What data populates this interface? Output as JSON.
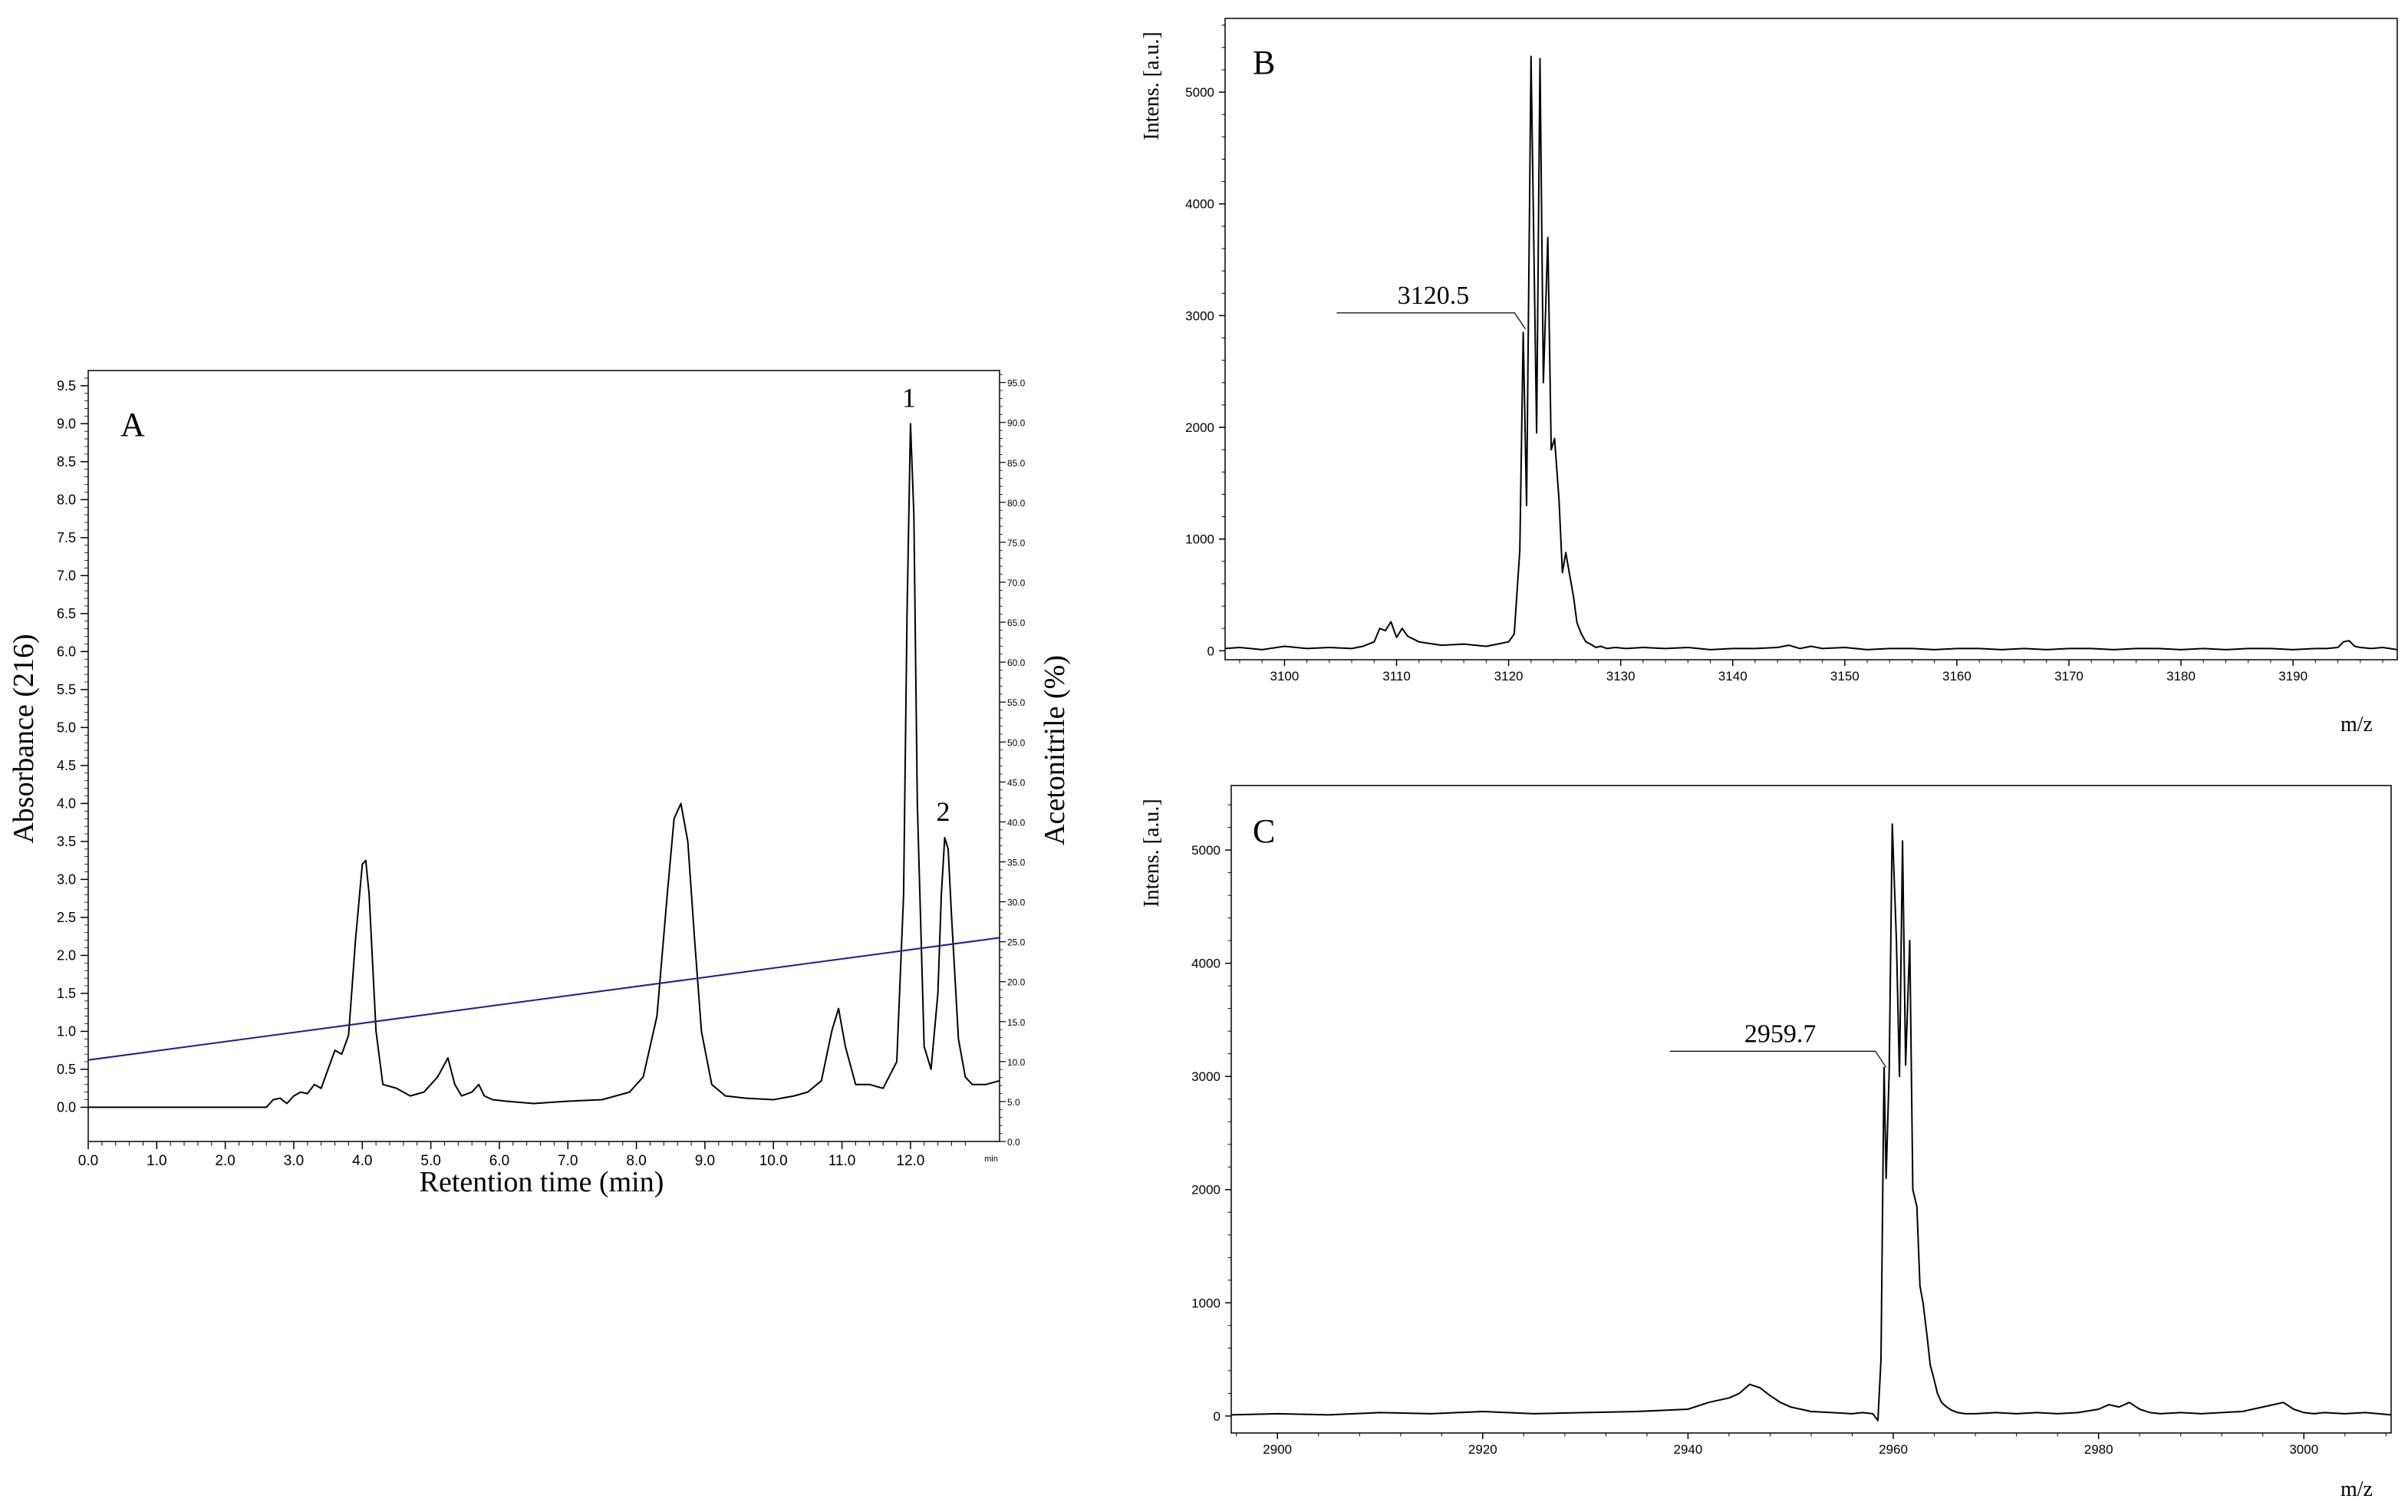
{
  "chart_data": [
    {
      "type": "line",
      "panel_label": "A",
      "xlabel": "Retention time (min)",
      "ylabel": "Absorbance (216)",
      "y2label": "Acetonitrile (%)",
      "xlim": [
        0,
        13.3
      ],
      "ylim": [
        -0.45,
        9.7
      ],
      "y2lim": [
        0,
        96.5
      ],
      "x_ticks": [
        "0.0",
        "1.0",
        "2.0",
        "3.0",
        "4.0",
        "5.0",
        "6.0",
        "7.0",
        "8.0",
        "9.0",
        "10.0",
        "11.0",
        "12.0"
      ],
      "x_unit_label": "min",
      "y_ticks": [
        "0.0",
        "0.5",
        "1.0",
        "1.5",
        "2.0",
        "2.5",
        "3.0",
        "3.5",
        "4.0",
        "4.5",
        "5.0",
        "5.5",
        "6.0",
        "6.5",
        "7.0",
        "7.5",
        "8.0",
        "8.5",
        "9.0",
        "9.5"
      ],
      "y2_ticks": [
        "0.0",
        "5.0",
        "10.0",
        "15.0",
        "20.0",
        "25.0",
        "30.0",
        "35.0",
        "40.0",
        "45.0",
        "50.0",
        "55.0",
        "60.0",
        "65.0",
        "70.0",
        "75.0",
        "80.0",
        "85.0",
        "90.0",
        "95.0"
      ],
      "grid": false,
      "series": [
        {
          "color": "#000000",
          "x": [
            0,
            2.6,
            2.7,
            2.8,
            2.9,
            3.0,
            3.1,
            3.2,
            3.3,
            3.4,
            3.5,
            3.6,
            3.7,
            3.8,
            3.9,
            4.0,
            4.05,
            4.1,
            4.2,
            4.3,
            4.5,
            4.7,
            4.9,
            5.1,
            5.25,
            5.35,
            5.45,
            5.6,
            5.7,
            5.78,
            5.9,
            6.1,
            6.5,
            7.0,
            7.5,
            7.9,
            8.1,
            8.3,
            8.45,
            8.55,
            8.65,
            8.75,
            8.85,
            8.95,
            9.1,
            9.3,
            9.6,
            10.0,
            10.3,
            10.5,
            10.7,
            10.85,
            10.95,
            11.05,
            11.2,
            11.4,
            11.6,
            11.8,
            11.9,
            11.95,
            12.0,
            12.05,
            12.1,
            12.2,
            12.3,
            12.4,
            12.45,
            12.5,
            12.55,
            12.6,
            12.7,
            12.8,
            12.9,
            13.1,
            13.3
          ],
          "y": [
            0,
            0,
            0.1,
            0.12,
            0.05,
            0.15,
            0.2,
            0.18,
            0.3,
            0.25,
            0.5,
            0.75,
            0.7,
            0.95,
            2.2,
            3.2,
            3.25,
            2.8,
            1.0,
            0.3,
            0.25,
            0.15,
            0.2,
            0.4,
            0.65,
            0.3,
            0.15,
            0.2,
            0.3,
            0.15,
            0.1,
            0.08,
            0.05,
            0.08,
            0.1,
            0.2,
            0.4,
            1.2,
            2.8,
            3.8,
            4.0,
            3.5,
            2.2,
            1.0,
            0.3,
            0.15,
            0.12,
            0.1,
            0.15,
            0.2,
            0.35,
            1.0,
            1.3,
            0.8,
            0.3,
            0.3,
            0.25,
            0.6,
            2.8,
            6.5,
            9.0,
            7.8,
            4.0,
            0.8,
            0.5,
            1.5,
            2.8,
            3.55,
            3.4,
            2.5,
            0.9,
            0.4,
            0.3,
            0.3,
            0.35
          ]
        },
        {
          "color": "#1a1a9a",
          "axis": "right",
          "x": [
            0,
            13.3
          ],
          "y": [
            10.2,
            25.5
          ]
        }
      ],
      "annotations": [
        {
          "text": "1",
          "x": 12.0,
          "y": 9.0
        },
        {
          "text": "2",
          "x": 12.5,
          "y": 3.55
        }
      ]
    },
    {
      "type": "line",
      "panel_label": "B",
      "xlabel": "m/z",
      "ylabel": "Intens. [a.u.]",
      "xlim": [
        3094.7,
        3199.3
      ],
      "ylim": [
        -80,
        5660
      ],
      "x_ticks": [
        "3100",
        "3110",
        "3120",
        "3130",
        "3140",
        "3150",
        "3160",
        "3170",
        "3180",
        "3190"
      ],
      "y_ticks": [
        "0",
        "1000",
        "2000",
        "3000",
        "4000",
        "5000"
      ],
      "grid": false,
      "series": [
        {
          "color": "#000000",
          "x": [
            3094.7,
            3096,
            3098,
            3100,
            3102,
            3104,
            3106,
            3107,
            3108,
            3108.5,
            3109,
            3109.5,
            3110,
            3110.5,
            3111,
            3112,
            3114,
            3116,
            3118,
            3119,
            3120,
            3120.5,
            3121,
            3121.3,
            3121.6,
            3122,
            3122.5,
            3122.8,
            3123.1,
            3123.5,
            3123.8,
            3124.1,
            3124.5,
            3124.8,
            3125.1,
            3125.5,
            3125.8,
            3126.1,
            3126.5,
            3126.9,
            3127.3,
            3127.8,
            3128.2,
            3128.8,
            3129.5,
            3130.5,
            3132,
            3134,
            3136,
            3138,
            3140,
            3142,
            3144,
            3145,
            3146,
            3147,
            3148,
            3150,
            3152,
            3154,
            3156,
            3158,
            3160,
            3162,
            3164,
            3166,
            3168,
            3170,
            3172,
            3174,
            3176,
            3178,
            3180,
            3182,
            3184,
            3186,
            3188,
            3190,
            3192,
            3193,
            3194,
            3194.5,
            3195,
            3195.5,
            3196,
            3197,
            3198,
            3199.3
          ],
          "y": [
            20,
            30,
            10,
            40,
            20,
            30,
            20,
            40,
            80,
            200,
            180,
            260,
            120,
            200,
            130,
            80,
            50,
            60,
            40,
            60,
            80,
            150,
            900,
            2850,
            1300,
            5320,
            1950,
            5300,
            2400,
            3700,
            1800,
            1900,
            1350,
            700,
            880,
            650,
            480,
            250,
            150,
            80,
            60,
            30,
            40,
            20,
            30,
            20,
            30,
            20,
            30,
            10,
            20,
            20,
            30,
            50,
            20,
            40,
            20,
            30,
            10,
            20,
            20,
            10,
            20,
            20,
            10,
            20,
            10,
            20,
            20,
            10,
            20,
            20,
            10,
            20,
            10,
            20,
            20,
            10,
            20,
            20,
            30,
            80,
            90,
            40,
            30,
            20,
            30,
            10
          ]
        }
      ],
      "annotations": [
        {
          "text": "3120.5",
          "x": 3121.5,
          "y": 2880
        }
      ]
    },
    {
      "type": "line",
      "panel_label": "C",
      "xlabel": "m/z",
      "ylabel": "Intens. [a.u.]",
      "xlim": [
        2895.5,
        3008.5
      ],
      "ylim": [
        -150,
        5570
      ],
      "x_ticks": [
        "2900",
        "2920",
        "2940",
        "2960",
        "2980",
        "3000"
      ],
      "y_ticks": [
        "0",
        "1000",
        "2000",
        "3000",
        "4000",
        "5000"
      ],
      "grid": false,
      "series": [
        {
          "color": "#000000",
          "x": [
            2895.5,
            2900,
            2905,
            2910,
            2915,
            2920,
            2925,
            2930,
            2935,
            2940,
            2942,
            2944,
            2945,
            2946,
            2947,
            2948,
            2949,
            2950,
            2952,
            2954,
            2956,
            2957,
            2958,
            2958.5,
            2958.8,
            2959.1,
            2959.3,
            2959.6,
            2959.9,
            2960.3,
            2960.6,
            2960.9,
            2961.2,
            2961.6,
            2961.9,
            2962.3,
            2962.6,
            2962.9,
            2963.3,
            2963.6,
            2963.9,
            2964.3,
            2964.7,
            2965.2,
            2965.7,
            2966.3,
            2967,
            2968,
            2970,
            2972,
            2974,
            2976,
            2978,
            2980,
            2981,
            2982,
            2983,
            2984,
            2985,
            2986,
            2988,
            2990,
            2992,
            2994,
            2996,
            2997,
            2998,
            2999,
            3000,
            3001,
            3002,
            3004,
            3006,
            3008.5
          ],
          "y": [
            10,
            20,
            10,
            30,
            20,
            40,
            20,
            30,
            40,
            60,
            120,
            160,
            200,
            280,
            250,
            180,
            120,
            80,
            40,
            30,
            20,
            30,
            20,
            -40,
            500,
            3080,
            2100,
            3050,
            5230,
            4200,
            3000,
            5080,
            3100,
            4200,
            2000,
            1850,
            1150,
            1000,
            700,
            450,
            350,
            200,
            120,
            80,
            50,
            30,
            20,
            20,
            30,
            20,
            30,
            20,
            30,
            60,
            100,
            80,
            120,
            60,
            30,
            20,
            30,
            20,
            30,
            40,
            80,
            100,
            120,
            60,
            30,
            20,
            30,
            20,
            30,
            10
          ]
        }
      ],
      "annotations": [
        {
          "text": "2959.7",
          "x": 2959.3,
          "y": 3080
        }
      ]
    }
  ]
}
